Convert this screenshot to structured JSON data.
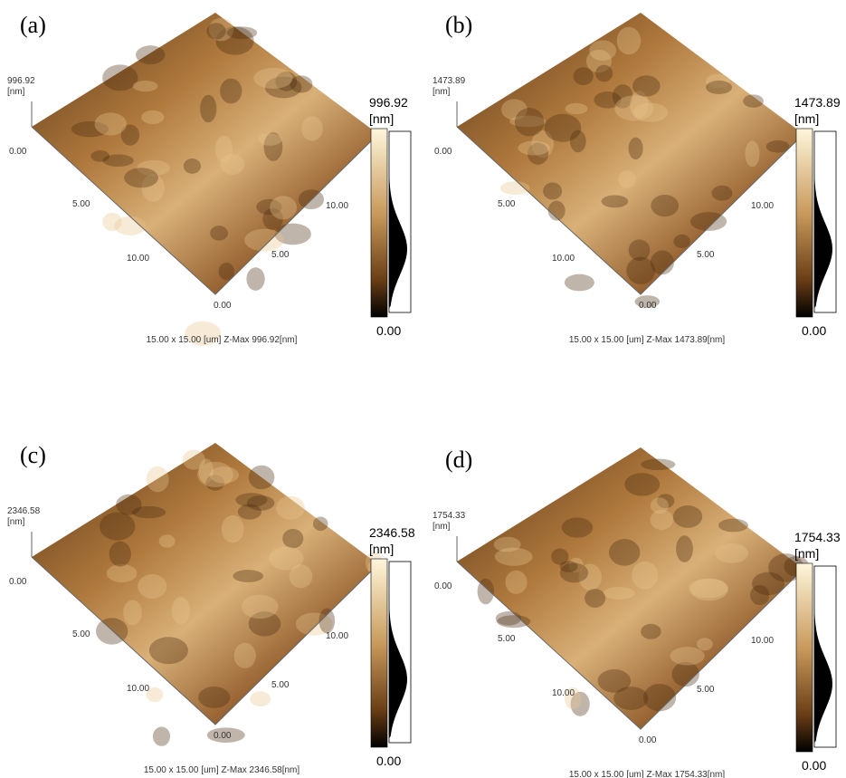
{
  "panels": [
    {
      "label": "(a)",
      "z_max": "996.92",
      "z_unit": "[nm]",
      "z_min": "0.00",
      "scale_max": "996.92",
      "scale_unit": "[nm]",
      "scale_min": "0.00",
      "left_ticks": [
        "5.00",
        "10.00"
      ],
      "corner": "0.00",
      "right_ticks": [
        "5.00",
        "10.00"
      ],
      "caption": "15.00 x 15.00 [um]  Z-Max 996.92[nm]"
    },
    {
      "label": "(b)",
      "z_max": "1473.89",
      "z_unit": "[nm]",
      "z_min": "0.00",
      "scale_max": "1473.89",
      "scale_unit": "[nm]",
      "scale_min": "0.00",
      "left_ticks": [
        "5.00",
        "10.00"
      ],
      "corner": "0.00",
      "right_ticks": [
        "5.00",
        "10.00"
      ],
      "caption": "15.00 x 15.00 [um]  Z-Max 1473.89[nm]"
    },
    {
      "label": "(c)",
      "z_max": "2346.58",
      "z_unit": "[nm]",
      "z_min": "0.00",
      "scale_max": "2346.58",
      "scale_unit": "[nm]",
      "scale_min": "0.00",
      "left_ticks": [
        "5.00",
        "10.00"
      ],
      "corner": "0.00",
      "right_ticks": [
        "5.00",
        "10.00"
      ],
      "caption": "15.00 x 15.00 [um]  Z-Max 2346.58[nm]"
    },
    {
      "label": "(d)",
      "z_max": "1754.33",
      "z_unit": "[nm]",
      "z_min": "0.00",
      "scale_max": "1754.33",
      "scale_unit": "[nm]",
      "scale_min": "0.00",
      "left_ticks": [
        "5.00",
        "10.00"
      ],
      "corner": "0.00",
      "right_ticks": [
        "5.00",
        "10.00"
      ],
      "caption": "15.00 x 15.00 [um]  Z-Max 1754.33[nm]"
    }
  ]
}
